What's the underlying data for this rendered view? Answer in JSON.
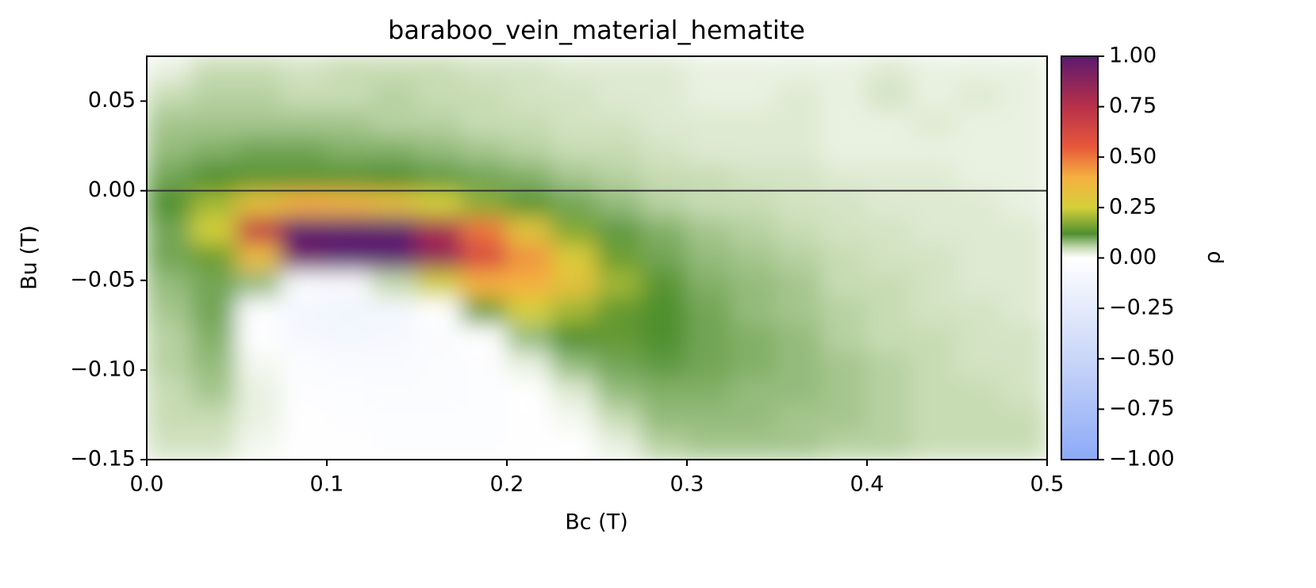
{
  "chart_data": {
    "type": "heatmap",
    "title": "baraboo_vein_material_hematite",
    "x_label": "Bc (T)",
    "y_label": "Bu (T)",
    "colorbar_label": "ρ",
    "x": [
      0.0125,
      0.0375,
      0.0625,
      0.0875,
      0.1125,
      0.1375,
      0.1625,
      0.1875,
      0.2125,
      0.2375,
      0.2625,
      0.2875,
      0.3125,
      0.3375,
      0.3625,
      0.3875,
      0.4125,
      0.4375,
      0.4625,
      0.4875
    ],
    "y": [
      0.0675,
      0.0525,
      0.0375,
      0.0225,
      0.0075,
      -0.0075,
      -0.0225,
      -0.0375,
      -0.0525,
      -0.0675,
      -0.0825,
      -0.0975,
      -0.1125,
      -0.1275,
      -0.1425
    ],
    "z": [
      [
        0.02,
        0.05,
        0.05,
        0.04,
        0.05,
        0.05,
        0.05,
        0.04,
        0.04,
        0.03,
        0.03,
        0.03,
        0.02,
        0.02,
        0.02,
        0.02,
        0.03,
        0.02,
        0.02,
        0.02
      ],
      [
        0.05,
        0.06,
        0.06,
        0.05,
        0.05,
        0.06,
        0.05,
        0.05,
        0.04,
        0.04,
        0.03,
        0.03,
        0.02,
        0.02,
        0.03,
        0.02,
        0.04,
        0.02,
        0.03,
        0.02
      ],
      [
        0.07,
        0.07,
        0.07,
        0.07,
        0.07,
        0.06,
        0.06,
        0.05,
        0.05,
        0.04,
        0.04,
        0.03,
        0.03,
        0.03,
        0.03,
        0.02,
        0.02,
        0.03,
        0.02,
        0.02
      ],
      [
        0.08,
        0.09,
        0.1,
        0.1,
        0.09,
        0.09,
        0.08,
        0.07,
        0.06,
        0.05,
        0.05,
        0.04,
        0.03,
        0.03,
        0.03,
        0.02,
        0.02,
        0.02,
        0.02,
        0.02
      ],
      [
        0.1,
        0.12,
        0.13,
        0.13,
        0.13,
        0.12,
        0.11,
        0.1,
        0.09,
        0.07,
        0.06,
        0.05,
        0.05,
        0.04,
        0.04,
        0.03,
        0.03,
        0.03,
        0.02,
        0.02
      ],
      [
        0.12,
        0.2,
        0.32,
        0.4,
        0.38,
        0.33,
        0.25,
        0.18,
        0.13,
        0.1,
        0.08,
        0.06,
        0.05,
        0.05,
        0.04,
        0.04,
        0.03,
        0.03,
        0.03,
        0.02
      ],
      [
        0.1,
        0.25,
        0.7,
        1.0,
        1.0,
        1.0,
        0.8,
        0.5,
        0.3,
        0.17,
        0.11,
        0.09,
        0.07,
        0.06,
        0.05,
        0.04,
        0.04,
        0.03,
        0.03,
        0.03
      ],
      [
        0.1,
        0.15,
        0.35,
        0.95,
        1.0,
        1.0,
        0.85,
        0.62,
        0.45,
        0.28,
        0.15,
        0.1,
        0.08,
        0.07,
        0.06,
        0.05,
        0.04,
        0.04,
        0.03,
        0.03
      ],
      [
        0.08,
        0.1,
        0.08,
        -0.05,
        -0.05,
        0.05,
        0.25,
        0.4,
        0.4,
        0.32,
        0.2,
        0.13,
        0.09,
        0.08,
        0.07,
        0.05,
        0.05,
        0.04,
        0.03,
        0.03
      ],
      [
        0.07,
        0.1,
        -0.02,
        -0.1,
        -0.14,
        -0.1,
        0.0,
        0.15,
        0.25,
        0.2,
        0.14,
        0.12,
        0.1,
        0.08,
        0.07,
        0.06,
        0.05,
        0.04,
        0.04,
        0.03
      ],
      [
        0.06,
        0.09,
        -0.01,
        -0.08,
        -0.1,
        -0.08,
        -0.05,
        0.0,
        0.08,
        0.12,
        0.14,
        0.12,
        0.1,
        0.09,
        0.08,
        0.06,
        0.05,
        0.05,
        0.04,
        0.04
      ],
      [
        0.06,
        0.08,
        0.01,
        -0.04,
        -0.06,
        -0.06,
        -0.04,
        -0.02,
        0.02,
        0.08,
        0.1,
        0.11,
        0.1,
        0.09,
        0.08,
        0.07,
        0.06,
        0.05,
        0.04,
        0.04
      ],
      [
        0.05,
        0.07,
        0.02,
        -0.02,
        -0.03,
        -0.04,
        -0.04,
        -0.03,
        0.0,
        0.03,
        0.08,
        0.09,
        0.09,
        0.08,
        0.08,
        0.07,
        0.06,
        0.05,
        0.05,
        0.04
      ],
      [
        0.05,
        0.05,
        0.02,
        -0.01,
        -0.02,
        -0.03,
        -0.03,
        -0.03,
        -0.01,
        0.01,
        0.05,
        0.08,
        0.08,
        0.08,
        0.07,
        0.07,
        0.06,
        0.05,
        0.05,
        0.05
      ],
      [
        0.04,
        0.04,
        0.01,
        -0.01,
        -0.01,
        -0.02,
        -0.02,
        -0.02,
        -0.01,
        0.0,
        0.02,
        0.06,
        0.07,
        0.07,
        0.07,
        0.06,
        0.06,
        0.05,
        0.05,
        0.05
      ]
    ],
    "xlim": [
      0,
      0.5
    ],
    "ylim": [
      -0.15,
      0.075
    ],
    "xticks": [
      {
        "value": 0,
        "label": "0.0"
      },
      0.1,
      0.2,
      0.3,
      0.4,
      0.5
    ],
    "yticks": [
      {
        "value": -0.15,
        "label": "−0.15"
      },
      {
        "value": -0.1,
        "label": "−0.10"
      },
      {
        "value": -0.05,
        "label": "−0.05"
      },
      {
        "value": 0,
        "label": "0.00"
      },
      0.05
    ],
    "clim": [
      -1,
      1
    ],
    "cticks": [
      {
        "value": -1,
        "label": "−1.00"
      },
      {
        "value": -0.75,
        "label": "−0.75"
      },
      {
        "value": -0.5,
        "label": "−0.50"
      },
      {
        "value": -0.25,
        "label": "−0.25"
      },
      {
        "value": 0,
        "label": "0.00"
      },
      {
        "value": 0.25,
        "label": "0.25"
      },
      {
        "value": 0.5,
        "label": "0.50"
      },
      {
        "value": 0.75,
        "label": "0.75"
      },
      {
        "value": 1,
        "label": "1.00"
      }
    ],
    "hline": 0,
    "colorscale": [
      [
        -1,
        "#8caaf8"
      ],
      [
        -0.5,
        "#c9d6f8"
      ],
      [
        0,
        "#ffffff"
      ],
      [
        0.05,
        "#c8dcb4"
      ],
      [
        0.12,
        "#4f8f2f"
      ],
      [
        0.25,
        "#d4d03a"
      ],
      [
        0.4,
        "#f5b041"
      ],
      [
        0.55,
        "#e8583a"
      ],
      [
        0.75,
        "#b8304a"
      ],
      [
        1,
        "#5c1a6e"
      ]
    ]
  }
}
